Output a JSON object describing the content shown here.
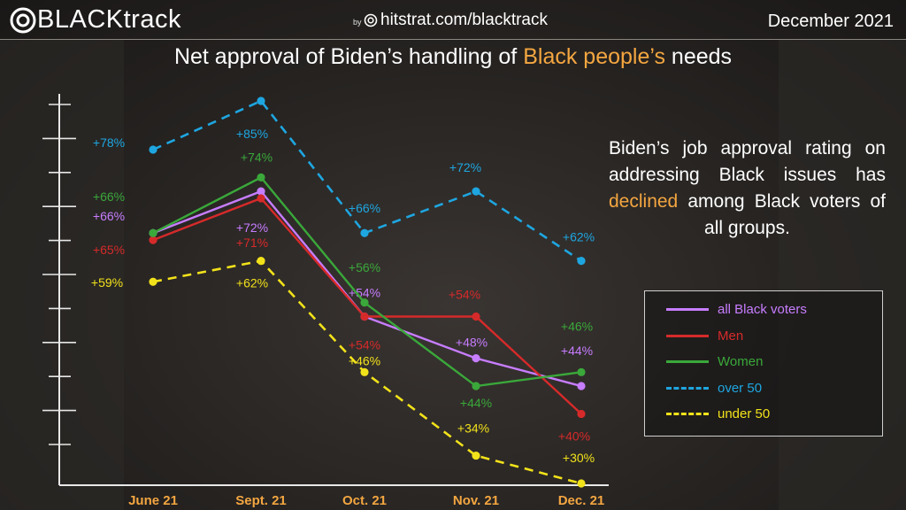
{
  "header": {
    "logo_text": "BLACKtrack",
    "by": "by",
    "site": "hitstrat.com/blacktrack",
    "date": "December 2021"
  },
  "title_parts": {
    "pre": "Net approval of Biden’s handling of ",
    "highlight": "Black people’s",
    "post": " needs"
  },
  "note_parts": {
    "pre": "Biden’s job approval rating on addressing Black issues has ",
    "highlight": "declined",
    "post": " among Black voters of all groups."
  },
  "colors": {
    "accent": "#f4a640",
    "all": "#c77dff",
    "men": "#d62a2a",
    "women": "#3aa83a",
    "over50": "#1ea6e0",
    "under50": "#f2e21a"
  },
  "chart_data": {
    "type": "line",
    "title": "Net approval of Biden’s handling of Black people’s needs",
    "categories": [
      "June 21",
      "Sept. 21",
      "Oct. 21",
      "Nov. 21",
      "Dec. 21"
    ],
    "xlabel": "",
    "ylabel": "",
    "ylim": [
      30,
      90
    ],
    "series": [
      {
        "name": "all Black voters",
        "values": [
          66,
          72,
          54,
          48,
          44
        ],
        "labels": [
          "+66%",
          "+72%",
          "+54%",
          "+48%",
          "+44%"
        ],
        "color": "#c77dff",
        "style": "solid"
      },
      {
        "name": "Men",
        "values": [
          65,
          71,
          54,
          54,
          40
        ],
        "labels": [
          "+65%",
          "+71%",
          "+54%",
          "+54%",
          "+40%"
        ],
        "color": "#d62a2a",
        "style": "solid"
      },
      {
        "name": "Women",
        "values": [
          66,
          74,
          56,
          44,
          46
        ],
        "labels": [
          "+66%",
          "+74%",
          "+56%",
          "+44%",
          "+46%"
        ],
        "color": "#3aa83a",
        "style": "solid"
      },
      {
        "name": "over 50",
        "values": [
          78,
          85,
          66,
          72,
          62
        ],
        "labels": [
          "+78%",
          "+85%",
          "+66%",
          "+72%",
          "+62%"
        ],
        "color": "#1ea6e0",
        "style": "dashed"
      },
      {
        "name": "under 50",
        "values": [
          59,
          62,
          46,
          34,
          30
        ],
        "labels": [
          "+59%",
          "+62%",
          "+46%",
          "+34%",
          "+30%"
        ],
        "color": "#f2e21a",
        "style": "dashed"
      }
    ],
    "legend": "right"
  }
}
